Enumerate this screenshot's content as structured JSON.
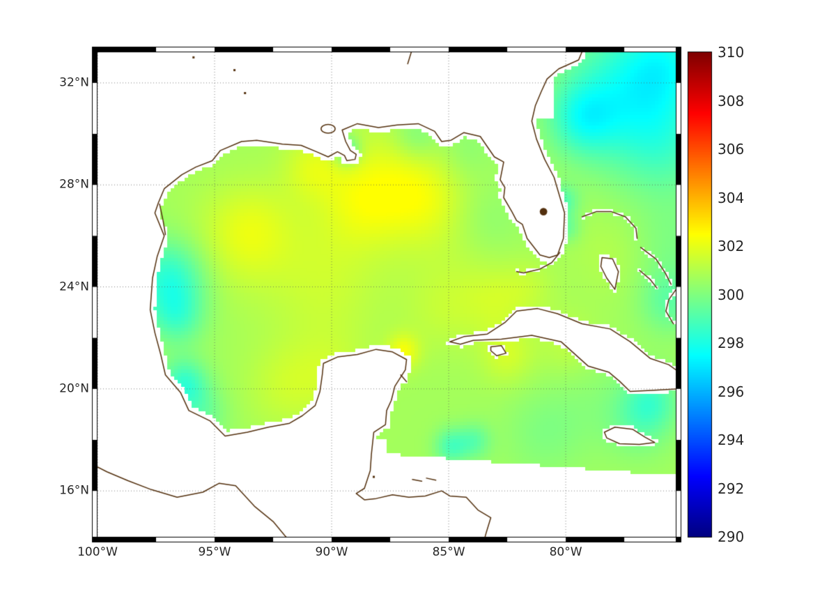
{
  "figure": {
    "background": "#ffffff",
    "coast_color": "#53300e",
    "grid_color": "#6e6e6e",
    "label_color": "#262626",
    "frame_color": "#000000",
    "land_fill": "#ffffff"
  },
  "chart_data": {
    "type": "heatmap",
    "title": "",
    "colormap": "jet",
    "x_range": [
      -100,
      -75.3
    ],
    "y_range": [
      14.2,
      33.2
    ],
    "x_axis": {
      "ticks": [
        {
          "label": "100°W",
          "value": -100
        },
        {
          "label": "95°W",
          "value": -95
        },
        {
          "label": "90°W",
          "value": -90
        },
        {
          "label": "85°W",
          "value": -85
        },
        {
          "label": "80°W",
          "value": -80
        }
      ]
    },
    "y_axis": {
      "ticks": [
        {
          "label": "32°N",
          "value": 32
        },
        {
          "label": "28°N",
          "value": 28
        },
        {
          "label": "24°N",
          "value": 24
        },
        {
          "label": "20°N",
          "value": 20
        },
        {
          "label": "16°N",
          "value": 16
        }
      ]
    },
    "colorbar": {
      "range": [
        290,
        310
      ],
      "ticks": [
        {
          "label": "310",
          "value": 310
        },
        {
          "label": "308",
          "value": 308
        },
        {
          "label": "306",
          "value": 306
        },
        {
          "label": "304",
          "value": 304
        },
        {
          "label": "302",
          "value": 302
        },
        {
          "label": "300",
          "value": 300
        },
        {
          "label": "298",
          "value": 298
        },
        {
          "label": "296",
          "value": 296
        },
        {
          "label": "294",
          "value": 294
        },
        {
          "label": "292",
          "value": 292
        },
        {
          "label": "290",
          "value": 290
        }
      ]
    },
    "field": {
      "base": 300.7,
      "clamp": [
        296.8,
        302.5
      ],
      "blobs": [
        [
          -96.9,
          24.3,
          1.1,
          298.3
        ],
        [
          -96.6,
          22.8,
          0.8,
          299.3
        ],
        [
          -96.3,
          20.2,
          0.7,
          298.6
        ],
        [
          -95.6,
          19.0,
          0.8,
          299.6
        ],
        [
          -94.2,
          25.8,
          1.5,
          301.4
        ],
        [
          -93.3,
          26.3,
          1.2,
          301.4
        ],
        [
          -90.5,
          25.5,
          2.0,
          301.1
        ],
        [
          -90.3,
          23.8,
          1.8,
          301.2
        ],
        [
          -90.8,
          28.7,
          0.9,
          301.7
        ],
        [
          -88.8,
          27.3,
          1.2,
          301.5
        ],
        [
          -87.3,
          28.1,
          1.6,
          301.9
        ],
        [
          -85.9,
          27.3,
          1.2,
          301.5
        ],
        [
          -89.35,
          29.35,
          0.4,
          298.6
        ],
        [
          -86.4,
          29.9,
          0.7,
          299.7
        ],
        [
          -84.3,
          29.4,
          0.8,
          300.2
        ],
        [
          -83.3,
          26.6,
          1.0,
          300.3
        ],
        [
          -92.0,
          20.1,
          1.2,
          301.4
        ],
        [
          -90.0,
          20.6,
          1.2,
          301.3
        ],
        [
          -86.95,
          21.45,
          0.5,
          302.2
        ],
        [
          -85.3,
          23.0,
          1.2,
          301.2
        ],
        [
          -83.0,
          23.4,
          1.0,
          301.4
        ],
        [
          -82.5,
          21.3,
          0.8,
          301.6
        ],
        [
          -79.9,
          21.7,
          0.9,
          301.3
        ],
        [
          -79.0,
          19.5,
          1.5,
          300.3
        ],
        [
          -81.0,
          18.2,
          1.2,
          300.1
        ],
        [
          -84.9,
          17.75,
          0.5,
          299.0
        ],
        [
          -83.9,
          17.95,
          0.5,
          299.4
        ],
        [
          -76.8,
          18.8,
          1.0,
          299.6
        ],
        [
          -76.3,
          19.6,
          0.8,
          299.4
        ],
        [
          -77.9,
          25.3,
          1.2,
          301.1
        ],
        [
          -80.1,
          27.35,
          0.45,
          299.2
        ],
        [
          -79.95,
          26.3,
          0.4,
          299.6
        ],
        [
          -79.3,
          30.6,
          1.0,
          298.8
        ],
        [
          -77.4,
          31.6,
          1.9,
          298.2
        ],
        [
          -75.6,
          32.9,
          1.3,
          299.0
        ],
        [
          -75.7,
          29.6,
          1.5,
          299.4
        ],
        [
          -75.6,
          23.4,
          0.9,
          299.5
        ],
        [
          -75.5,
          25.6,
          1.4,
          300.0
        ],
        [
          -84.6,
          24.6,
          1.4,
          301.0
        ],
        [
          -81.6,
          24.0,
          0.8,
          301.2
        ]
      ]
    },
    "geometry": {
      "domain": [
        [
          -98.35,
          18.0
        ],
        [
          -98.35,
          30.55
        ],
        [
          -80.5,
          30.55
        ],
        [
          -80.5,
          33.25
        ],
        [
          -75.28,
          33.25
        ],
        [
          -75.28,
          16.6
        ],
        [
          -87.7,
          17.45
        ],
        [
          -87.7,
          18.0
        ]
      ],
      "land_main": [
        [
          -100.45,
          33.45
        ],
        [
          -79.2,
          33.45
        ],
        [
          -79.45,
          32.9
        ],
        [
          -80.3,
          32.55
        ],
        [
          -80.8,
          32.15
        ],
        [
          -81.05,
          31.65
        ],
        [
          -81.3,
          31.1
        ],
        [
          -81.45,
          30.5
        ],
        [
          -81.25,
          29.8
        ],
        [
          -80.9,
          29.0
        ],
        [
          -80.5,
          28.3
        ],
        [
          -80.05,
          26.9
        ],
        [
          -80.1,
          25.9
        ],
        [
          -80.35,
          25.25
        ],
        [
          -80.7,
          25.15
        ],
        [
          -81.1,
          25.25
        ],
        [
          -81.65,
          25.9
        ],
        [
          -81.85,
          26.45
        ],
        [
          -82.1,
          26.6
        ],
        [
          -82.3,
          26.95
        ],
        [
          -82.65,
          27.5
        ],
        [
          -82.6,
          27.9
        ],
        [
          -82.8,
          28.2
        ],
        [
          -82.65,
          28.9
        ],
        [
          -83.05,
          29.1
        ],
        [
          -83.65,
          29.9
        ],
        [
          -84.35,
          30.05
        ],
        [
          -84.9,
          29.75
        ],
        [
          -85.3,
          29.7
        ],
        [
          -85.6,
          30.1
        ],
        [
          -86.3,
          30.4
        ],
        [
          -87.2,
          30.35
        ],
        [
          -88.0,
          30.25
        ],
        [
          -88.9,
          30.4
        ],
        [
          -89.55,
          30.15
        ],
        [
          -89.4,
          29.7
        ],
        [
          -89.2,
          29.35
        ],
        [
          -88.95,
          29.2
        ],
        [
          -89.0,
          29.0
        ],
        [
          -89.35,
          28.95
        ],
        [
          -89.45,
          29.15
        ],
        [
          -89.75,
          29.3
        ],
        [
          -90.15,
          29.1
        ],
        [
          -90.65,
          29.3
        ],
        [
          -91.3,
          29.55
        ],
        [
          -92.1,
          29.6
        ],
        [
          -93.2,
          29.75
        ],
        [
          -93.85,
          29.7
        ],
        [
          -94.75,
          29.35
        ],
        [
          -95.1,
          28.95
        ],
        [
          -95.8,
          28.7
        ],
        [
          -96.4,
          28.4
        ],
        [
          -97.15,
          27.85
        ],
        [
          -97.4,
          27.3
        ],
        [
          -97.55,
          26.9
        ],
        [
          -97.15,
          26.0
        ],
        [
          -97.45,
          25.2
        ],
        [
          -97.65,
          24.35
        ],
        [
          -97.75,
          23.1
        ],
        [
          -97.55,
          22.2
        ],
        [
          -97.3,
          21.35
        ],
        [
          -97.1,
          20.55
        ],
        [
          -96.45,
          19.85
        ],
        [
          -96.1,
          19.15
        ],
        [
          -95.2,
          18.75
        ],
        [
          -94.55,
          18.15
        ],
        [
          -93.6,
          18.3
        ],
        [
          -92.7,
          18.5
        ],
        [
          -91.8,
          18.65
        ],
        [
          -91.25,
          18.95
        ],
        [
          -90.7,
          19.35
        ],
        [
          -90.5,
          19.9
        ],
        [
          -90.4,
          20.55
        ],
        [
          -90.35,
          21.0
        ],
        [
          -89.75,
          21.25
        ],
        [
          -88.9,
          21.35
        ],
        [
          -88.1,
          21.55
        ],
        [
          -87.4,
          21.45
        ],
        [
          -86.8,
          21.15
        ],
        [
          -86.85,
          20.75
        ],
        [
          -87.3,
          20.1
        ],
        [
          -87.45,
          19.55
        ],
        [
          -87.65,
          19.15
        ],
        [
          -87.7,
          18.6
        ],
        [
          -88.2,
          18.3
        ],
        [
          -88.3,
          17.45
        ],
        [
          -88.35,
          16.8
        ],
        [
          -88.6,
          16.1
        ],
        [
          -88.95,
          15.9
        ],
        [
          -88.6,
          15.65
        ],
        [
          -88.1,
          15.7
        ],
        [
          -87.4,
          15.85
        ],
        [
          -86.7,
          15.75
        ],
        [
          -86.0,
          15.8
        ],
        [
          -85.3,
          16.0
        ],
        [
          -84.95,
          15.8
        ],
        [
          -84.25,
          15.75
        ],
        [
          -83.75,
          15.25
        ],
        [
          -83.2,
          14.95
        ],
        [
          -83.4,
          14.35
        ],
        [
          -83.55,
          13.85
        ],
        [
          -100.45,
          13.85
        ]
      ],
      "cuba": [
        [
          -84.95,
          21.85
        ],
        [
          -84.35,
          22.05
        ],
        [
          -83.35,
          22.15
        ],
        [
          -82.6,
          22.6
        ],
        [
          -82.1,
          23.05
        ],
        [
          -81.2,
          23.15
        ],
        [
          -80.35,
          22.95
        ],
        [
          -79.3,
          22.55
        ],
        [
          -78.1,
          22.35
        ],
        [
          -77.25,
          21.85
        ],
        [
          -76.4,
          21.2
        ],
        [
          -75.6,
          20.95
        ],
        [
          -75.22,
          20.7
        ],
        [
          -75.22,
          20.0
        ],
        [
          -76.2,
          19.95
        ],
        [
          -77.25,
          19.9
        ],
        [
          -77.7,
          20.3
        ],
        [
          -78.15,
          20.65
        ],
        [
          -79.05,
          20.9
        ],
        [
          -80.2,
          21.85
        ],
        [
          -81.45,
          22.1
        ],
        [
          -82.75,
          21.95
        ],
        [
          -83.95,
          21.9
        ],
        [
          -84.5,
          21.75
        ]
      ],
      "juventud": [
        [
          -83.2,
          21.65
        ],
        [
          -82.75,
          21.7
        ],
        [
          -82.55,
          21.4
        ],
        [
          -82.95,
          21.3
        ],
        [
          -83.2,
          21.5
        ]
      ],
      "jamaica": [
        [
          -78.35,
          18.3
        ],
        [
          -77.9,
          18.5
        ],
        [
          -77.15,
          18.42
        ],
        [
          -76.6,
          18.1
        ],
        [
          -76.2,
          17.9
        ],
        [
          -76.85,
          17.82
        ],
        [
          -77.7,
          17.85
        ],
        [
          -78.25,
          18.08
        ]
      ],
      "andros": [
        [
          -78.45,
          25.15
        ],
        [
          -78.0,
          25.1
        ],
        [
          -77.75,
          24.6
        ],
        [
          -77.9,
          23.9
        ],
        [
          -78.25,
          24.35
        ],
        [
          -78.5,
          24.8
        ]
      ],
      "abaco": [
        [
          -79.3,
          26.75
        ],
        [
          -78.7,
          26.95
        ],
        [
          -78.05,
          26.95
        ],
        [
          -77.45,
          26.75
        ],
        [
          -77.0,
          26.3
        ],
        [
          -76.95,
          25.9
        ]
      ],
      "eleuthera": [
        [
          -76.8,
          25.55
        ],
        [
          -76.15,
          25.1
        ],
        [
          -75.75,
          24.55
        ],
        [
          -75.5,
          24.1
        ]
      ],
      "exuma": [
        [
          -76.85,
          24.65
        ],
        [
          -76.4,
          24.3
        ],
        [
          -76.1,
          23.95
        ]
      ],
      "long_island": [
        [
          -75.25,
          23.95
        ],
        [
          -75.6,
          23.5
        ],
        [
          -75.72,
          23.05
        ],
        [
          -75.4,
          22.55
        ]
      ],
      "florida_keys": [
        [
          -80.25,
          25.35
        ],
        [
          -80.6,
          24.95
        ],
        [
          -81.1,
          24.7
        ],
        [
          -81.8,
          24.55
        ],
        [
          -82.1,
          24.6
        ]
      ],
      "pacific_coast": [
        [
          -100.45,
          17.15
        ],
        [
          -99.6,
          16.75
        ],
        [
          -98.7,
          16.4
        ],
        [
          -97.7,
          16.05
        ],
        [
          -96.6,
          15.75
        ],
        [
          -95.5,
          15.95
        ],
        [
          -94.8,
          16.3
        ],
        [
          -94.1,
          16.2
        ],
        [
          -93.3,
          15.4
        ],
        [
          -92.5,
          14.8
        ],
        [
          -92.0,
          14.25
        ],
        [
          -91.6,
          13.85
        ]
      ],
      "laguna_madre": [
        [
          -97.35,
          27.25
        ],
        [
          -97.2,
          26.6
        ],
        [
          -97.1,
          26.05
        ]
      ],
      "cozumel": [
        [
          -87.05,
          20.55
        ],
        [
          -86.8,
          20.28
        ]
      ],
      "bay_islands": [
        [
          [
            -86.55,
            16.45
          ],
          [
            -86.15,
            16.38
          ]
        ],
        [
          [
            -85.95,
            16.5
          ],
          [
            -85.55,
            16.42
          ]
        ]
      ],
      "river_mark": [
        [
          -86.6,
          33.2
        ],
        [
          -86.75,
          32.75
        ]
      ],
      "lake_pontchartrain": {
        "cx": -90.15,
        "cy": 30.2,
        "rx": 0.3,
        "ry": 0.17
      },
      "lake_okeechobee": {
        "cx": -80.95,
        "cy": 26.95,
        "r": 0.16
      },
      "small_lakes": [
        [
          -93.7,
          31.6
        ],
        [
          -94.15,
          32.5
        ],
        [
          -95.9,
          33.0
        ],
        [
          -88.2,
          16.55
        ]
      ]
    }
  }
}
